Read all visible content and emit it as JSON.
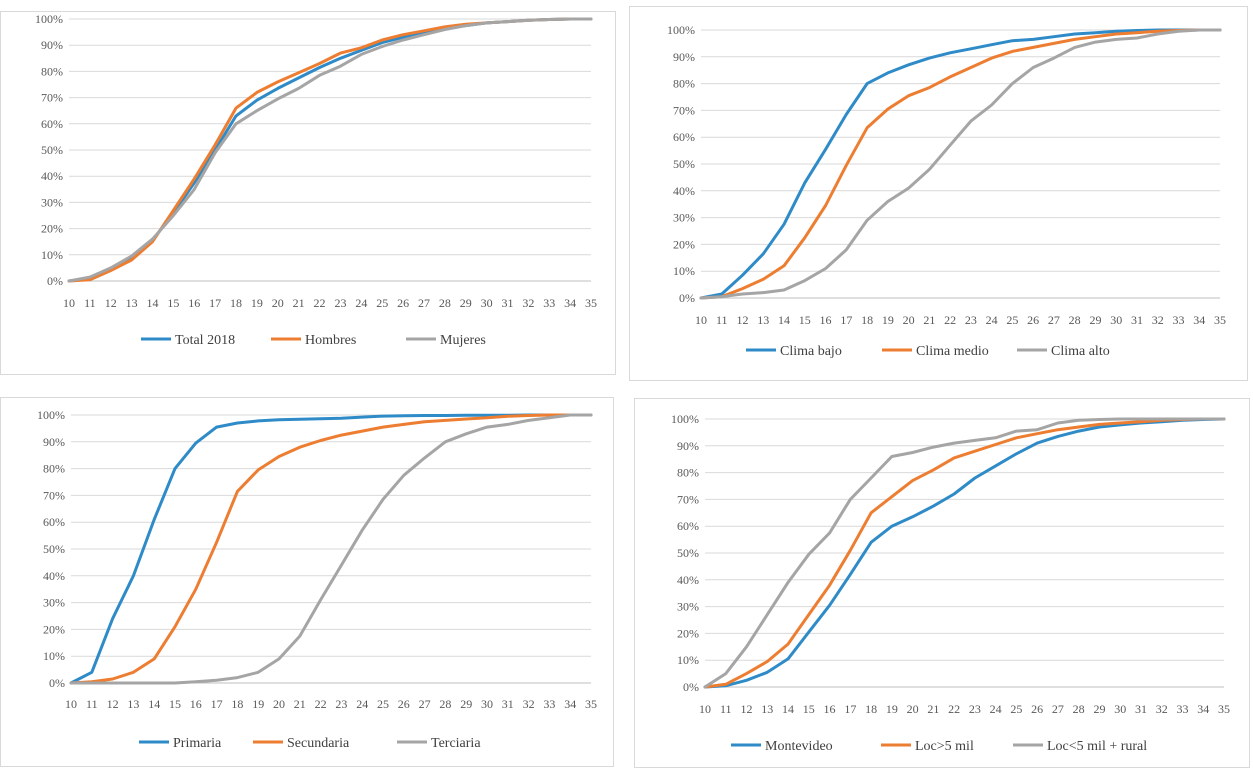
{
  "chart_data": [
    {
      "type": "line",
      "title": "",
      "xlabel": "",
      "ylabel": "",
      "ylim": [
        0,
        100
      ],
      "yticks": [
        "0%",
        "10%",
        "20%",
        "30%",
        "40%",
        "50%",
        "60%",
        "70%",
        "80%",
        "90%",
        "100%"
      ],
      "x": [
        "10",
        "11",
        "12",
        "13",
        "14",
        "15",
        "16",
        "17",
        "18",
        "19",
        "20",
        "21",
        "22",
        "23",
        "24",
        "25",
        "26",
        "27",
        "28",
        "29",
        "30",
        "31",
        "32",
        "33",
        "34",
        "35"
      ],
      "legend_position": "bottom",
      "series": [
        {
          "name": "Total 2018",
          "color": "#2e8bc8",
          "values": [
            0,
            1,
            4.5,
            8.5,
            15.5,
            26,
            37.5,
            50,
            63,
            69,
            73.5,
            77.5,
            81.5,
            85,
            88,
            91,
            93,
            95,
            96.5,
            97.5,
            98.5,
            99,
            99.5,
            99.8,
            100,
            100
          ]
        },
        {
          "name": "Hombres",
          "color": "#ed7d31",
          "values": [
            0,
            0.5,
            4,
            8,
            15,
            27,
            39,
            52,
            66,
            72,
            76,
            79.5,
            83,
            87,
            89,
            92,
            94,
            95.5,
            97,
            98,
            98.5,
            99,
            99.5,
            99.8,
            100,
            100
          ]
        },
        {
          "name": "Mujeres",
          "color": "#a5a5a5",
          "values": [
            0,
            1.5,
            5,
            9.5,
            16,
            25,
            35,
            49,
            60,
            65,
            69.5,
            73.5,
            78.5,
            82,
            86.5,
            89.5,
            92,
            94,
            96,
            97.5,
            98.5,
            99,
            99.5,
            99.8,
            100,
            100
          ]
        }
      ]
    },
    {
      "type": "line",
      "title": "",
      "xlabel": "",
      "ylabel": "",
      "ylim": [
        0,
        100
      ],
      "yticks": [
        "0%",
        "10%",
        "20%",
        "30%",
        "40%",
        "50%",
        "60%",
        "70%",
        "80%",
        "90%",
        "100%"
      ],
      "x": [
        "10",
        "11",
        "12",
        "13",
        "14",
        "15",
        "16",
        "17",
        "18",
        "19",
        "20",
        "21",
        "22",
        "23",
        "24",
        "25",
        "26",
        "27",
        "28",
        "29",
        "30",
        "31",
        "32",
        "33",
        "34",
        "35"
      ],
      "legend_position": "bottom",
      "series": [
        {
          "name": "Clima bajo",
          "color": "#2e8bc8",
          "values": [
            0,
            1.5,
            8.5,
            16.5,
            27.5,
            43,
            55.5,
            68.5,
            80,
            84,
            87,
            89.5,
            91.5,
            93,
            94.5,
            96,
            96.5,
            97.5,
            98.5,
            99,
            99.5,
            99.8,
            100,
            100,
            100,
            100
          ]
        },
        {
          "name": "Clima medio",
          "color": "#ed7d31",
          "values": [
            0,
            0.5,
            3.5,
            7,
            12,
            22.5,
            34.5,
            49.5,
            63.5,
            70.5,
            75.5,
            78.5,
            82.5,
            86,
            89.5,
            92,
            93.5,
            95,
            96.5,
            97.5,
            98.5,
            99,
            99.5,
            99.8,
            100,
            100
          ]
        },
        {
          "name": "Clima alto",
          "color": "#a5a5a5",
          "values": [
            0,
            0.5,
            1.5,
            2,
            3,
            6.5,
            11,
            18,
            29,
            36,
            41,
            48,
            57,
            66,
            72,
            80,
            86,
            89.5,
            93.5,
            95.5,
            96.5,
            97,
            98.5,
            99.5,
            100,
            100
          ]
        }
      ]
    },
    {
      "type": "line",
      "title": "",
      "xlabel": "",
      "ylabel": "",
      "ylim": [
        0,
        100
      ],
      "yticks": [
        "0%",
        "10%",
        "20%",
        "30%",
        "40%",
        "50%",
        "60%",
        "70%",
        "80%",
        "90%",
        "100%"
      ],
      "x": [
        "10",
        "11",
        "12",
        "13",
        "14",
        "15",
        "16",
        "17",
        "18",
        "19",
        "20",
        "21",
        "22",
        "23",
        "24",
        "25",
        "26",
        "27",
        "28",
        "29",
        "30",
        "31",
        "32",
        "33",
        "34",
        "35"
      ],
      "legend_position": "bottom",
      "series": [
        {
          "name": "Primaria",
          "color": "#2e8bc8",
          "values": [
            0,
            4,
            24,
            40,
            61,
            80,
            89.5,
            95.5,
            97,
            97.8,
            98.2,
            98.4,
            98.6,
            98.8,
            99.2,
            99.6,
            99.7,
            99.8,
            99.8,
            99.9,
            99.9,
            99.9,
            100,
            100,
            100,
            100
          ]
        },
        {
          "name": "Secundaria",
          "color": "#ed7d31",
          "values": [
            0,
            0.5,
            1.5,
            4,
            9,
            21,
            35,
            52.5,
            71.5,
            79.5,
            84.5,
            88,
            90.5,
            92.5,
            94,
            95.5,
            96.5,
            97.5,
            98,
            98.5,
            99,
            99.5,
            99.8,
            100,
            100,
            100
          ]
        },
        {
          "name": "Terciaria",
          "color": "#a5a5a5",
          "values": [
            0,
            0,
            0,
            0,
            0,
            0,
            0.5,
            1,
            2,
            4,
            9,
            17.5,
            31,
            44,
            57,
            68.5,
            77.5,
            84,
            90,
            93,
            95.5,
            96.5,
            98,
            99,
            100,
            100
          ]
        }
      ]
    },
    {
      "type": "line",
      "title": "",
      "xlabel": "",
      "ylabel": "",
      "ylim": [
        0,
        100
      ],
      "yticks": [
        "0%",
        "10%",
        "20%",
        "30%",
        "40%",
        "50%",
        "60%",
        "70%",
        "80%",
        "90%",
        "100%"
      ],
      "x": [
        "10",
        "11",
        "12",
        "13",
        "14",
        "15",
        "16",
        "17",
        "18",
        "19",
        "20",
        "21",
        "22",
        "23",
        "24",
        "25",
        "26",
        "27",
        "28",
        "29",
        "30",
        "31",
        "32",
        "33",
        "34",
        "35"
      ],
      "legend_position": "bottom",
      "series": [
        {
          "name": "Montevideo",
          "color": "#2e8bc8",
          "values": [
            0,
            0.5,
            2.5,
            5.5,
            10.5,
            20.5,
            30.5,
            42,
            54,
            60,
            63.5,
            67.5,
            72,
            78,
            82.5,
            87,
            91,
            93.5,
            95.5,
            97,
            97.8,
            98.5,
            99,
            99.5,
            99.8,
            100
          ]
        },
        {
          "name": "Loc>5 mil",
          "color": "#ed7d31",
          "values": [
            0,
            1,
            5,
            9.5,
            16,
            27,
            38,
            51,
            65,
            71,
            77,
            81,
            85.5,
            88,
            90.5,
            93,
            94.5,
            96,
            97,
            98,
            98.5,
            99,
            99.5,
            99.8,
            100,
            100
          ]
        },
        {
          "name": "Loc<5 mil + rural",
          "color": "#a5a5a5",
          "values": [
            0,
            5,
            15,
            27,
            39,
            49.5,
            57.5,
            70,
            78,
            86,
            87.5,
            89.5,
            91,
            92,
            93,
            95.5,
            96,
            98.5,
            99.5,
            99.8,
            100,
            100,
            100,
            100,
            100,
            100
          ]
        }
      ]
    }
  ]
}
